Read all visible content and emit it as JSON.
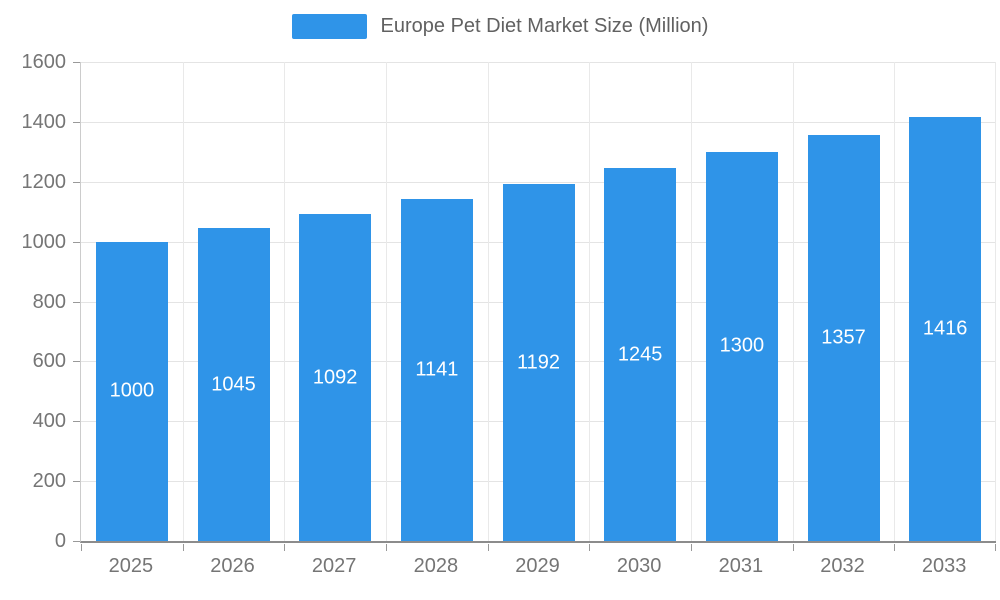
{
  "chart_data": {
    "type": "bar",
    "title": "Europe Pet Diet Market Size (Million)",
    "categories": [
      "2025",
      "2026",
      "2027",
      "2028",
      "2029",
      "2030",
      "2031",
      "2032",
      "2033"
    ],
    "values": [
      1000,
      1045,
      1092,
      1141,
      1192,
      1245,
      1300,
      1357,
      1416
    ],
    "xlabel": "",
    "ylabel": "",
    "ylim": [
      0,
      1600
    ],
    "yticks": [
      0,
      200,
      400,
      600,
      800,
      1000,
      1200,
      1400,
      1600
    ],
    "grid": true,
    "legend_position": "top-center",
    "data_labels_inside_bars": true
  },
  "colors": {
    "bar": "#2F94E8",
    "grid": "#E4E4E4",
    "axis": "#8C8C8C",
    "tick_text": "#757575",
    "legend_text": "#616161",
    "bar_label_text": "#FFFFFF"
  }
}
